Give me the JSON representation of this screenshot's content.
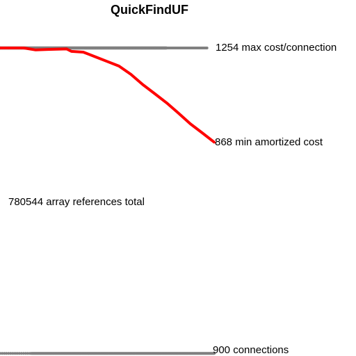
{
  "chart_data": {
    "type": "scatter",
    "title": "QuickFindUF",
    "xlabel": "",
    "ylabel": "",
    "grid": false,
    "xlim": [
      0,
      900
    ],
    "ylim": [
      0,
      1254
    ],
    "annotations": {
      "max_cost": "1254 max cost/connection",
      "min_amortized": "868 min amortized cost",
      "total": "780544 array references total",
      "connections": "900 connections"
    },
    "colors": {
      "individual_cost": "#808080",
      "amortized_cost": "#ff0000",
      "background": "#ffffff",
      "text": "#000000"
    },
    "series": [
      {
        "values_description": "per-connection cost",
        "color": "#808080",
        "style": "points",
        "low_band_value": 2,
        "high_band_value": 1254,
        "high_band_x_range": [
          0,
          870
        ]
      },
      {
        "color": "#ff0000",
        "style": "line",
        "x": [
          0,
          100,
          150,
          200,
          280,
          300,
          350,
          400,
          450,
          500,
          550,
          600,
          650,
          700,
          750,
          800,
          850,
          900
        ],
        "y": [
          1254,
          1254,
          1246,
          1248,
          1250,
          1240,
          1237,
          1218,
          1199,
          1180,
          1146,
          1104,
          1067,
          1029,
          987,
          943,
          906,
          868
        ]
      }
    ]
  }
}
